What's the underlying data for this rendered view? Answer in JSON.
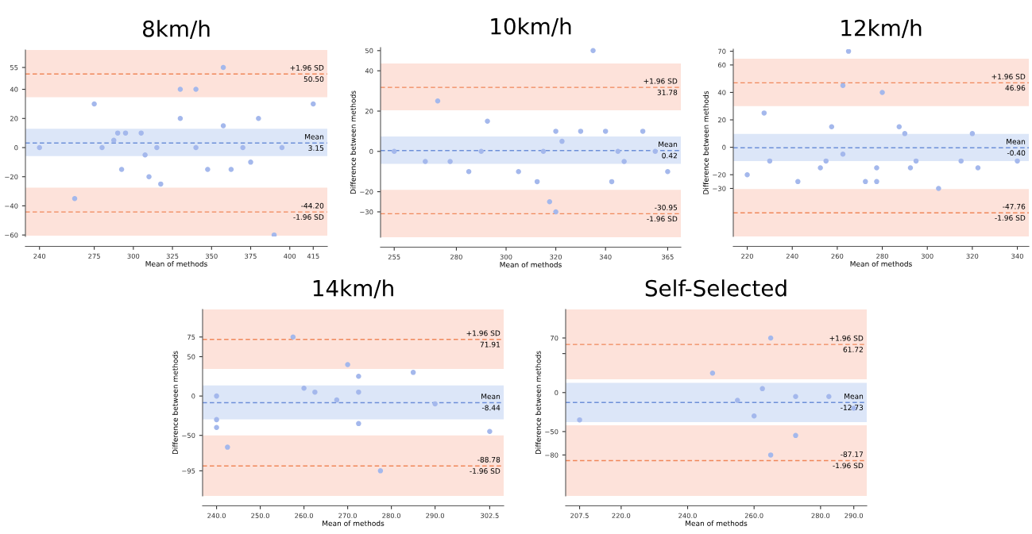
{
  "chart_data": [
    {
      "type": "scatter",
      "title": "8km/h",
      "xlabel": "Mean of methods",
      "color": "#a4b8ec",
      "marker": "circle",
      "x": [
        240,
        262.5,
        275,
        280,
        287.5,
        290,
        292.5,
        295,
        305,
        307.5,
        310,
        315,
        317.5,
        330,
        330,
        340,
        340,
        347.5,
        357.5,
        357.5,
        362.5,
        370,
        375,
        380,
        390,
        395,
        415
      ],
      "values": [
        0,
        -35,
        30,
        0,
        5,
        10,
        -15,
        10,
        10,
        -5,
        -20,
        0,
        -25,
        40,
        20,
        40,
        0,
        -15,
        55,
        15,
        -15,
        0,
        -10,
        20,
        -60,
        0,
        30
      ],
      "xlim": [
        231,
        424
      ],
      "ylim": [
        -61,
        67
      ],
      "xticks": [
        240,
        275,
        300,
        325,
        350,
        375,
        400,
        415
      ],
      "yticks": [
        -60,
        -40,
        -20,
        0,
        20,
        40,
        55
      ],
      "ref_lines": [
        {
          "axis": "y",
          "value": 50.5,
          "label": "+1.96 SD\n50.50",
          "color": "#f0875a",
          "line_style": "dashed"
        },
        {
          "axis": "y",
          "value": 3.15,
          "label": "Mean\n3.15",
          "color": "#6d8fd8",
          "line_style": "dashed"
        },
        {
          "axis": "y",
          "value": -44.2,
          "label": "-44.20\n-1.96 SD",
          "color": "#f0875a",
          "line_style": "dashed"
        }
      ],
      "bands": [
        {
          "axis": "y",
          "from": 34.6,
          "to": 67,
          "color": "#fde2da"
        },
        {
          "axis": "y",
          "from": -5.8,
          "to": 12.9,
          "color": "#dce6f8"
        },
        {
          "axis": "y",
          "from": -60.5,
          "to": -27.5,
          "color": "#fde2da"
        }
      ]
    },
    {
      "type": "scatter",
      "title": "10km/h",
      "xlabel": "Mean of methods",
      "ylabel": "Difference between methods",
      "color": "#a4b8ec",
      "marker": "circle",
      "x": [
        255,
        267.5,
        272.5,
        277.5,
        285,
        290,
        292.5,
        305,
        312.5,
        315,
        317.5,
        320,
        320,
        322.5,
        330,
        335,
        340,
        342.5,
        345,
        347.5,
        355,
        360,
        365
      ],
      "values": [
        0,
        -5,
        25,
        -5,
        -10,
        0,
        15,
        -10,
        -15,
        0,
        -25,
        10,
        -30,
        5,
        10,
        50,
        10,
        -15,
        0,
        -5,
        10,
        0,
        -10
      ],
      "xlim": [
        249.5,
        370.3
      ],
      "ylim": [
        -42.6,
        51.5
      ],
      "xticks": [
        255,
        280,
        300,
        320,
        340,
        365
      ],
      "yticks": [
        -30,
        -20,
        0,
        20,
        40,
        50
      ],
      "ref_lines": [
        {
          "axis": "y",
          "value": 31.78,
          "label": "+1.96 SD\n31.78",
          "color": "#f0875a",
          "line_style": "dashed"
        },
        {
          "axis": "y",
          "value": 0.42,
          "label": "Mean\n0.42",
          "color": "#6d8fd8",
          "line_style": "dashed"
        },
        {
          "axis": "y",
          "value": -30.95,
          "label": "-30.95\n-1.96 SD",
          "color": "#f0875a",
          "line_style": "dashed"
        }
      ],
      "bands": [
        {
          "axis": "y",
          "from": 20.4,
          "to": 43.6,
          "color": "#fde2da"
        },
        {
          "axis": "y",
          "from": -6.2,
          "to": 7.4,
          "color": "#dce6f8"
        },
        {
          "axis": "y",
          "from": -42.6,
          "to": -19.1,
          "color": "#fde2da"
        }
      ]
    },
    {
      "type": "scatter",
      "title": "12km/h",
      "xlabel": "Mean of methods",
      "ylabel": "Difference between methods",
      "color": "#a4b8ec",
      "marker": "circle",
      "x": [
        220,
        227.5,
        230,
        242.5,
        252.5,
        255,
        257.5,
        262.5,
        262.5,
        265,
        272.5,
        277.5,
        277.5,
        280,
        287.5,
        290,
        292.5,
        295,
        305,
        315,
        320,
        322.5,
        340
      ],
      "values": [
        -20,
        25,
        -10,
        -25,
        -15,
        -10,
        15,
        45,
        -5,
        70,
        -25,
        -15,
        -25,
        40,
        15,
        10,
        -15,
        -10,
        -30,
        -10,
        10,
        -15,
        -10
      ],
      "xlim": [
        213.8,
        345.1
      ],
      "ylim": [
        -65,
        71.5
      ],
      "xticks": [
        220,
        240,
        260,
        280,
        300,
        320,
        340
      ],
      "yticks": [
        -30,
        -20,
        0,
        20,
        40,
        60,
        70
      ],
      "ref_lines": [
        {
          "axis": "y",
          "value": 46.96,
          "label": "+1.96 SD\n46.96",
          "color": "#f0875a",
          "line_style": "dashed"
        },
        {
          "axis": "y",
          "value": -0.4,
          "label": "Mean\n-0.40",
          "color": "#6d8fd8",
          "line_style": "dashed"
        },
        {
          "axis": "y",
          "value": -47.76,
          "label": "-47.76\n-1.96 SD",
          "color": "#f0875a",
          "line_style": "dashed"
        }
      ],
      "bands": [
        {
          "axis": "y",
          "from": 30,
          "to": 64.6,
          "color": "#fde2da"
        },
        {
          "axis": "y",
          "from": -10,
          "to": 9.8,
          "color": "#dce6f8"
        },
        {
          "axis": "y",
          "from": -65,
          "to": -30.4,
          "color": "#fde2da"
        }
      ]
    },
    {
      "type": "scatter",
      "title": "14km/h",
      "xlabel": "Mean of methods",
      "ylabel": "Difference between methods",
      "color": "#a4b8ec",
      "marker": "circle",
      "x": [
        240,
        240,
        240,
        242.5,
        257.5,
        260,
        262.5,
        267.5,
        270,
        272.5,
        272.5,
        272.5,
        277.5,
        285,
        290,
        302.5
      ],
      "values": [
        0,
        -30,
        -40,
        -65,
        75,
        10,
        5,
        -5,
        40,
        25,
        5,
        -35,
        -95,
        30,
        -10,
        -45
      ],
      "xlim": [
        236.8,
        305.7
      ],
      "ylim": [
        -126.9,
        110
      ],
      "xticks": [
        {
          "value": 240,
          "label": "240.0"
        },
        {
          "value": 250,
          "label": "250.0"
        },
        {
          "value": 260,
          "label": "260.0"
        },
        {
          "value": 270,
          "label": "270.0"
        },
        {
          "value": 280,
          "label": "280.0"
        },
        {
          "value": 290,
          "label": "290.0"
        },
        {
          "value": 302.5,
          "label": "302.5"
        }
      ],
      "yticks": [
        -95,
        -50,
        0,
        50,
        75
      ],
      "ref_lines": [
        {
          "axis": "y",
          "value": 71.91,
          "label": "+1.96 SD\n71.91",
          "color": "#f0875a",
          "line_style": "dashed"
        },
        {
          "axis": "y",
          "value": -8.44,
          "label": "Mean\n-8.44",
          "color": "#6d8fd8",
          "line_style": "dashed"
        },
        {
          "axis": "y",
          "value": -88.78,
          "label": "-88.78\n-1.96 SD",
          "color": "#f0875a",
          "line_style": "dashed"
        }
      ],
      "bands": [
        {
          "axis": "y",
          "from": 34.3,
          "to": 110,
          "color": "#fde2da"
        },
        {
          "axis": "y",
          "from": -29.6,
          "to": 13.5,
          "color": "#dce6f8"
        },
        {
          "axis": "y",
          "from": -126.9,
          "to": -50,
          "color": "#fde2da"
        }
      ]
    },
    {
      "type": "scatter",
      "title": "Self-Selected",
      "xlabel": "Mean of methods",
      "ylabel": "Difference between methods",
      "color": "#a4b8ec",
      "marker": "circle",
      "x": [
        207.5,
        247.5,
        255,
        260,
        262.5,
        265,
        265,
        272.5,
        272.5,
        282.5,
        290
      ],
      "values": [
        -35,
        25,
        -10,
        -30,
        5,
        70,
        -80,
        -5,
        -55,
        -5,
        -20
      ],
      "xlim": [
        203.3,
        293.9
      ],
      "ylim": [
        -132.5,
        106.6
      ],
      "xticks": [
        {
          "value": 207.5,
          "label": "207.5"
        },
        {
          "value": 220,
          "label": "220.0"
        },
        {
          "value": 240,
          "label": "240.0"
        },
        {
          "value": 260,
          "label": "260.0"
        },
        {
          "value": 280,
          "label": "280.0"
        },
        {
          "value": 290,
          "label": "290.0"
        }
      ],
      "yticks": [
        -80,
        -50,
        0,
        {
          "value": 50,
          "label": null
        },
        70
      ],
      "ref_lines": [
        {
          "axis": "y",
          "value": 61.72,
          "label": "+1.96 SD\n61.72",
          "color": "#f0875a",
          "line_style": "dashed"
        },
        {
          "axis": "y",
          "value": -12.73,
          "label": "Mean\n-12.73",
          "color": "#6d8fd8",
          "line_style": "dashed"
        },
        {
          "axis": "y",
          "value": -87.17,
          "label": "-87.17\n-1.96 SD",
          "color": "#f0875a",
          "line_style": "dashed"
        }
      ],
      "bands": [
        {
          "axis": "y",
          "from": 17,
          "to": 106.6,
          "color": "#fde2da"
        },
        {
          "axis": "y",
          "from": -38,
          "to": 12.5,
          "color": "#dce6f8"
        },
        {
          "axis": "y",
          "from": -132.5,
          "to": -42,
          "color": "#fde2da"
        }
      ]
    }
  ]
}
